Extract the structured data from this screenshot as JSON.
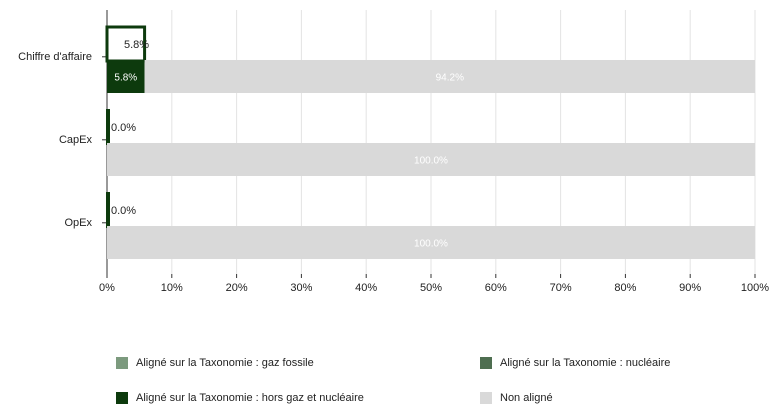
{
  "chart_data": {
    "type": "bar",
    "orientation": "horizontal",
    "title": "",
    "xlabel": "",
    "ylabel": "",
    "xlim": [
      0,
      100
    ],
    "x_ticks": [
      "0%",
      "10%",
      "20%",
      "30%",
      "40%",
      "50%",
      "60%",
      "70%",
      "80%",
      "90%",
      "100%"
    ],
    "categories": [
      "Chiffre d'affaire",
      "CapEx",
      "OpEx"
    ],
    "series": [
      {
        "name": "Aligné sur la Taxonomie : gaz fossile",
        "color": "#7c9a7e",
        "values": [
          0,
          0,
          0
        ]
      },
      {
        "name": "Aligné sur la Taxonomie : nucléaire",
        "color": "#4e6e50",
        "values": [
          0,
          0,
          0
        ]
      },
      {
        "name": "Aligné sur la Taxonomie : hors gaz et nucléaire",
        "color": "#0d3a0d",
        "values": [
          5.8,
          0.0,
          0.0
        ]
      },
      {
        "name": "Non aligné",
        "color": "#d9d9d9",
        "values": [
          94.2,
          100.0,
          100.0
        ]
      }
    ],
    "bars": [
      {
        "category": "Chiffre d'affaire",
        "upper": {
          "value": 5.8,
          "label": "5.8%",
          "style": "outline",
          "color": "#0d3a0d"
        },
        "lower": [
          {
            "series": "Aligné sur la Taxonomie : hors gaz et nucléaire",
            "value": 5.8,
            "label": "5.8%",
            "color": "#0d3a0d"
          },
          {
            "series": "Non aligné",
            "value": 94.2,
            "label": "94.2%",
            "color": "#d9d9d9"
          }
        ]
      },
      {
        "category": "CapEx",
        "upper": {
          "value": 0.0,
          "label": "0.0%",
          "style": "outline",
          "color": "#0d3a0d"
        },
        "lower": [
          {
            "series": "Aligné sur la Taxonomie : hors gaz et nucléaire",
            "value": 0.0,
            "label": "0.0%",
            "color": "#0d3a0d"
          },
          {
            "series": "Non aligné",
            "value": 100.0,
            "label": "100.0%",
            "color": "#d9d9d9"
          }
        ]
      },
      {
        "category": "OpEx",
        "upper": {
          "value": 0.0,
          "label": "0.0%",
          "style": "outline",
          "color": "#0d3a0d"
        },
        "lower": [
          {
            "series": "Aligné sur la Taxonomie : hors gaz et nucléaire",
            "value": 0.0,
            "label": "0.0%",
            "color": "#0d3a0d"
          },
          {
            "series": "Non aligné",
            "value": 100.0,
            "label": "100.0%",
            "color": "#d9d9d9"
          }
        ]
      }
    ],
    "grid": true,
    "legend": "bottom"
  },
  "legend": {
    "items": [
      {
        "label": "Aligné sur la Taxonomie : gaz fossile",
        "color": "#7c9a7e"
      },
      {
        "label": "Aligné sur la Taxonomie : nucléaire",
        "color": "#4e6e50"
      },
      {
        "label": "Aligné sur la Taxonomie : hors gaz et nucléaire",
        "color": "#0d3a0d"
      },
      {
        "label": "Non aligné",
        "color": "#d9d9d9"
      }
    ]
  }
}
